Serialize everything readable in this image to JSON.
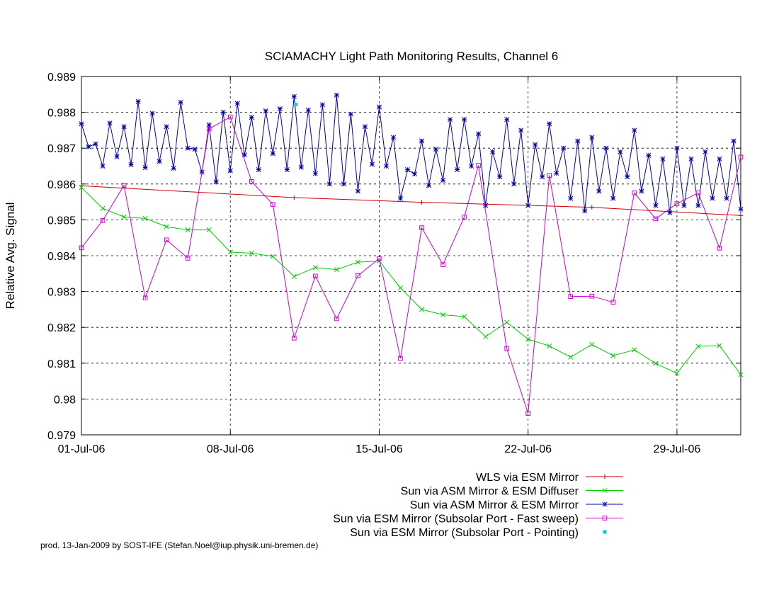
{
  "chart_data": {
    "type": "line",
    "title": "SCIAMACHY Light Path Monitoring Results, Channel 6",
    "xlabel": "",
    "ylabel": "Relative Avg. Signal",
    "x_axis": {
      "type": "date",
      "range": [
        "2006-07-01",
        "2006-08-01"
      ],
      "ticks": [
        {
          "date": "2006-07-01",
          "label": "01-Jul-06"
        },
        {
          "date": "2006-07-08",
          "label": "08-Jul-06"
        },
        {
          "date": "2006-07-15",
          "label": "15-Jul-06"
        },
        {
          "date": "2006-07-22",
          "label": "22-Jul-06"
        },
        {
          "date": "2006-07-29",
          "label": "29-Jul-06"
        }
      ]
    },
    "y_axis": {
      "range": [
        0.979,
        0.989
      ],
      "ticks": [
        {
          "value": 0.979,
          "label": "0.979"
        },
        {
          "value": 0.98,
          "label": "0.98"
        },
        {
          "value": 0.981,
          "label": "0.981"
        },
        {
          "value": 0.982,
          "label": "0.982"
        },
        {
          "value": 0.983,
          "label": "0.983"
        },
        {
          "value": 0.984,
          "label": "0.984"
        },
        {
          "value": 0.985,
          "label": "0.985"
        },
        {
          "value": 0.986,
          "label": "0.986"
        },
        {
          "value": 0.987,
          "label": "0.987"
        },
        {
          "value": 0.988,
          "label": "0.988"
        },
        {
          "value": 0.989,
          "label": "0.989"
        }
      ]
    },
    "grid": true,
    "legend_position": "bottom-right",
    "series": [
      {
        "name": "WLS via ESM Mirror",
        "color": "#cc0000",
        "marker": "plus",
        "style": "line",
        "points": [
          [
            "2006-07-01",
            0.98595
          ],
          [
            "2006-07-11",
            0.98562
          ],
          [
            "2006-07-17",
            0.98549
          ],
          [
            "2006-07-25",
            0.98535
          ],
          [
            "2006-08-01",
            0.98512
          ]
        ]
      },
      {
        "name": "Sun via ASM Mirror & ESM Diffuser",
        "color": "#00cc00",
        "marker": "cross",
        "style": "line",
        "points": [
          [
            "2006-07-01",
            0.9859
          ],
          [
            "2006-07-02",
            0.98532
          ],
          [
            "2006-07-03",
            0.98508
          ],
          [
            "2006-07-04",
            0.98504
          ],
          [
            "2006-07-05",
            0.98481
          ],
          [
            "2006-07-06",
            0.98472
          ],
          [
            "2006-07-07",
            0.98472
          ],
          [
            "2006-07-08",
            0.9841
          ],
          [
            "2006-07-09",
            0.98407
          ],
          [
            "2006-07-10",
            0.98398
          ],
          [
            "2006-07-11",
            0.98342
          ],
          [
            "2006-07-12",
            0.98367
          ],
          [
            "2006-07-13",
            0.98361
          ],
          [
            "2006-07-14",
            0.98382
          ],
          [
            "2006-07-15",
            0.98385
          ],
          [
            "2006-07-16",
            0.9831
          ],
          [
            "2006-07-17",
            0.9825
          ],
          [
            "2006-07-18",
            0.98235
          ],
          [
            "2006-07-19",
            0.9823
          ],
          [
            "2006-07-20",
            0.98174
          ],
          [
            "2006-07-21",
            0.98214
          ],
          [
            "2006-07-22",
            0.98167
          ],
          [
            "2006-07-23",
            0.98148
          ],
          [
            "2006-07-24",
            0.98117
          ],
          [
            "2006-07-25",
            0.98152
          ],
          [
            "2006-07-26",
            0.98121
          ],
          [
            "2006-07-27",
            0.98137
          ],
          [
            "2006-07-28",
            0.98099
          ],
          [
            "2006-07-29",
            0.98072
          ],
          [
            "2006-07-30",
            0.98147
          ],
          [
            "2006-07-31",
            0.98149
          ],
          [
            "2006-08-01",
            0.98068
          ]
        ]
      },
      {
        "name": "Sun via ASM Mirror & ESM Mirror",
        "color": "#0000aa",
        "marker": "star",
        "style": "line",
        "points": [
          [
            "2006-07-01",
            0.98768
          ],
          [
            "2006-07-01T08",
            0.98704
          ],
          [
            "2006-07-01T16",
            0.98712
          ],
          [
            "2006-07-02",
            0.9865
          ],
          [
            "2006-07-02T08",
            0.9877
          ],
          [
            "2006-07-02T16",
            0.98676
          ],
          [
            "2006-07-03",
            0.9876
          ],
          [
            "2006-07-03T08",
            0.98654
          ],
          [
            "2006-07-03T16",
            0.9883
          ],
          [
            "2006-07-04",
            0.98646
          ],
          [
            "2006-07-04T08",
            0.98797
          ],
          [
            "2006-07-04T16",
            0.98663
          ],
          [
            "2006-07-05",
            0.9876
          ],
          [
            "2006-07-05T08",
            0.98644
          ],
          [
            "2006-07-05T16",
            0.98828
          ],
          [
            "2006-07-06",
            0.987
          ],
          [
            "2006-07-06T08",
            0.98697
          ],
          [
            "2006-07-06T16",
            0.98633
          ],
          [
            "2006-07-07",
            0.98765
          ],
          [
            "2006-07-07T08",
            0.98606
          ],
          [
            "2006-07-07T16",
            0.988
          ],
          [
            "2006-07-08",
            0.98637
          ],
          [
            "2006-07-08T08",
            0.98825
          ],
          [
            "2006-07-08T16",
            0.98681
          ],
          [
            "2006-07-09",
            0.98786
          ],
          [
            "2006-07-09T08",
            0.9864
          ],
          [
            "2006-07-09T16",
            0.98804
          ],
          [
            "2006-07-10",
            0.98685
          ],
          [
            "2006-07-10T08",
            0.9881
          ],
          [
            "2006-07-10T16",
            0.9864
          ],
          [
            "2006-07-11",
            0.98844
          ],
          [
            "2006-07-11T08",
            0.98647
          ],
          [
            "2006-07-11T16",
            0.98806
          ],
          [
            "2006-07-12",
            0.98629
          ],
          [
            "2006-07-12T08",
            0.98821
          ],
          [
            "2006-07-12T16",
            0.986
          ],
          [
            "2006-07-13",
            0.98848
          ],
          [
            "2006-07-13T08",
            0.986
          ],
          [
            "2006-07-13T16",
            0.98795
          ],
          [
            "2006-07-14",
            0.9858
          ],
          [
            "2006-07-14T08",
            0.9876
          ],
          [
            "2006-07-14T16",
            0.98655
          ],
          [
            "2006-07-15",
            0.98815
          ],
          [
            "2006-07-15T08",
            0.9865
          ],
          [
            "2006-07-15T16",
            0.9873
          ],
          [
            "2006-07-16",
            0.9856
          ],
          [
            "2006-07-16T08",
            0.9864
          ],
          [
            "2006-07-16T16",
            0.98628
          ],
          [
            "2006-07-17",
            0.9872
          ],
          [
            "2006-07-17T08",
            0.98596
          ],
          [
            "2006-07-17T16",
            0.98697
          ],
          [
            "2006-07-18",
            0.9861
          ],
          [
            "2006-07-18T08",
            0.9878
          ],
          [
            "2006-07-18T16",
            0.9864
          ],
          [
            "2006-07-19",
            0.9878
          ],
          [
            "2006-07-19T08",
            0.9865
          ],
          [
            "2006-07-19T16",
            0.9874
          ],
          [
            "2006-07-20",
            0.9854
          ],
          [
            "2006-07-20T08",
            0.9869
          ],
          [
            "2006-07-20T16",
            0.9862
          ],
          [
            "2006-07-21",
            0.9878
          ],
          [
            "2006-07-21T08",
            0.986
          ],
          [
            "2006-07-21T16",
            0.9875
          ],
          [
            "2006-07-22",
            0.9854
          ],
          [
            "2006-07-22T08",
            0.9871
          ],
          [
            "2006-07-22T16",
            0.9862
          ],
          [
            "2006-07-23",
            0.98768
          ],
          [
            "2006-07-23T08",
            0.9863
          ],
          [
            "2006-07-23T16",
            0.987
          ],
          [
            "2006-07-24",
            0.9856
          ],
          [
            "2006-07-24T08",
            0.9872
          ],
          [
            "2006-07-24T16",
            0.98525
          ],
          [
            "2006-07-25",
            0.9873
          ],
          [
            "2006-07-25T08",
            0.9858
          ],
          [
            "2006-07-25T16",
            0.987
          ],
          [
            "2006-07-26",
            0.9856
          ],
          [
            "2006-07-26T08",
            0.9869
          ],
          [
            "2006-07-26T16",
            0.9862
          ],
          [
            "2006-07-27",
            0.9875
          ],
          [
            "2006-07-27T08",
            0.9858
          ],
          [
            "2006-07-27T16",
            0.9868
          ],
          [
            "2006-07-28",
            0.9854
          ],
          [
            "2006-07-28T08",
            0.9867
          ],
          [
            "2006-07-28T16",
            0.9852
          ],
          [
            "2006-07-29",
            0.987
          ],
          [
            "2006-07-29T08",
            0.9854
          ],
          [
            "2006-07-29T16",
            0.9867
          ],
          [
            "2006-07-30",
            0.9854
          ],
          [
            "2006-07-30T08",
            0.9869
          ],
          [
            "2006-07-30T16",
            0.9856
          ],
          [
            "2006-07-31",
            0.9867
          ],
          [
            "2006-07-31T08",
            0.9856
          ],
          [
            "2006-07-31T16",
            0.9872
          ],
          [
            "2006-08-01",
            0.9853
          ]
        ]
      },
      {
        "name": "Sun via ESM Mirror (Subsolar Port - Fast sweep)",
        "color": "#cc00cc",
        "marker": "square",
        "style": "line",
        "points": [
          [
            "2006-07-01",
            0.98422
          ],
          [
            "2006-07-02",
            0.98498
          ],
          [
            "2006-07-03",
            0.98596
          ],
          [
            "2006-07-04",
            0.98282
          ],
          [
            "2006-07-05",
            0.98444
          ],
          [
            "2006-07-06",
            0.98393
          ],
          [
            "2006-07-07",
            0.98754
          ],
          [
            "2006-07-08",
            0.98787
          ],
          [
            "2006-07-09",
            0.98607
          ],
          [
            "2006-07-10",
            0.98543
          ],
          [
            "2006-07-11",
            0.9817
          ],
          [
            "2006-07-12",
            0.98343
          ],
          [
            "2006-07-13",
            0.98224
          ],
          [
            "2006-07-14",
            0.98344
          ],
          [
            "2006-07-15",
            0.98392
          ],
          [
            "2006-07-16",
            0.98113
          ],
          [
            "2006-07-17",
            0.98478
          ],
          [
            "2006-07-18",
            0.98375
          ],
          [
            "2006-07-19",
            0.98508
          ],
          [
            "2006-07-19T16",
            0.98652
          ],
          [
            "2006-07-21",
            0.98141
          ],
          [
            "2006-07-22",
            0.9796
          ],
          [
            "2006-07-23",
            0.98624
          ],
          [
            "2006-07-24",
            0.98286
          ],
          [
            "2006-07-25",
            0.98287
          ],
          [
            "2006-07-26",
            0.9827
          ],
          [
            "2006-07-27",
            0.98575
          ],
          [
            "2006-07-28",
            0.98503
          ],
          [
            "2006-07-29",
            0.98545
          ],
          [
            "2006-07-30",
            0.98575
          ],
          [
            "2006-07-31",
            0.98421
          ],
          [
            "2006-08-01",
            0.98675
          ]
        ]
      },
      {
        "name": "Sun via ESM Mirror (Subsolar Port - Pointing)",
        "color": "#00cccc",
        "marker": "dot",
        "style": "points",
        "points": [
          [
            "2006-07-11T02",
            0.98822
          ]
        ]
      }
    ]
  },
  "footer": "prod. 13-Jan-2009 by SOST-IFE (Stefan.Noel@iup.physik.uni-bremen.de)"
}
